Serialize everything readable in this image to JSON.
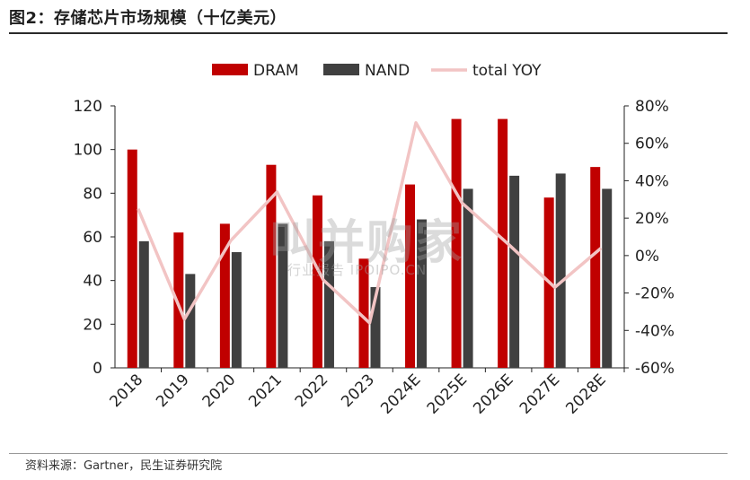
{
  "title": "图2：存储芯片市场规模（十亿美元）",
  "source": "资料来源：Gartner，民生证券研究院",
  "watermark": {
    "main": "叫并购家",
    "sub": "行业报告 IPOIPO.CN"
  },
  "colors": {
    "dram": "#C00000",
    "nand": "#404040",
    "yoy": "#F2C4C4",
    "axis": "#222222"
  },
  "chart_data": {
    "type": "bar",
    "categories": [
      "2018",
      "2019",
      "2020",
      "2021",
      "2022",
      "2023",
      "2024E",
      "2025E",
      "2026E",
      "2027E",
      "2028E"
    ],
    "series": [
      {
        "name": "DRAM",
        "type": "bar",
        "axis": "left",
        "values": [
          100,
          62,
          66,
          93,
          79,
          50,
          84,
          114,
          114,
          78,
          92
        ]
      },
      {
        "name": "NAND",
        "type": "bar",
        "axis": "left",
        "values": [
          58,
          43,
          53,
          66,
          58,
          37,
          68,
          82,
          88,
          89,
          82
        ]
      },
      {
        "name": "total YOY",
        "type": "line",
        "axis": "right",
        "values": [
          25,
          -34,
          8,
          34,
          -13,
          -36,
          71,
          28,
          6,
          -17,
          4
        ]
      }
    ],
    "y_left": {
      "min": 0,
      "max": 120,
      "step": 20,
      "ticks": [
        "0",
        "20",
        "40",
        "60",
        "80",
        "100",
        "120"
      ]
    },
    "y_right": {
      "min": -60,
      "max": 80,
      "step": 20,
      "ticks": [
        "-60%",
        "-40%",
        "-20%",
        "0%",
        "20%",
        "40%",
        "60%",
        "80%"
      ]
    },
    "legend": [
      "DRAM",
      "NAND",
      "total YOY"
    ],
    "legend_position": "top",
    "grid": false
  }
}
